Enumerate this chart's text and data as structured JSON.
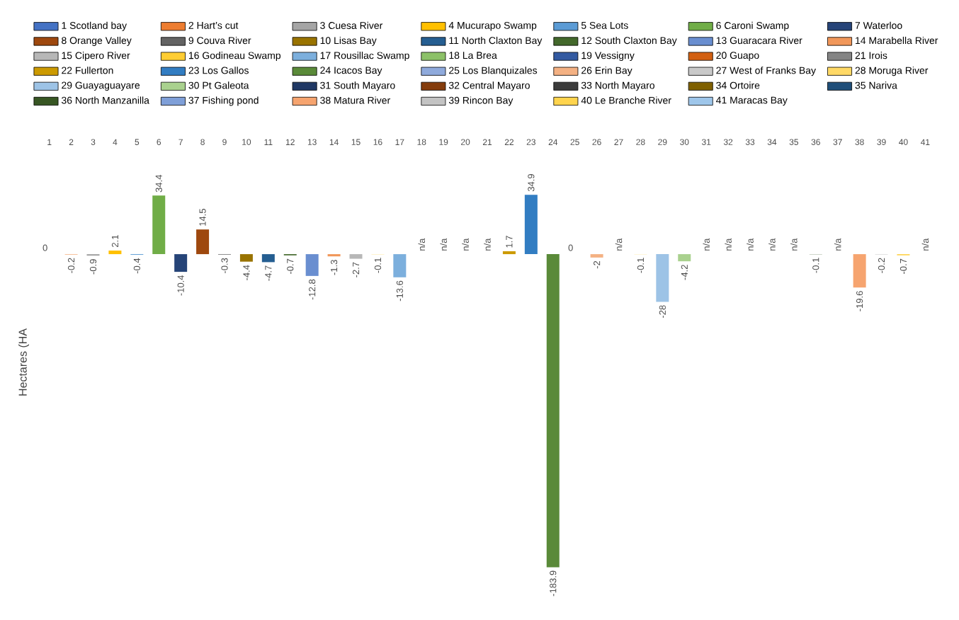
{
  "chart_data": {
    "type": "bar",
    "ylabel": "Hectares (HA",
    "categories": [
      "1",
      "2",
      "3",
      "4",
      "5",
      "6",
      "7",
      "8",
      "9",
      "10",
      "11",
      "12",
      "13",
      "14",
      "15",
      "16",
      "17",
      "18",
      "19",
      "20",
      "21",
      "22",
      "23",
      "24",
      "25",
      "26",
      "27",
      "28",
      "29",
      "30",
      "31",
      "32",
      "33",
      "34",
      "35",
      "36",
      "37",
      "38",
      "39",
      "40",
      "41"
    ],
    "series": [
      {
        "name": "1 Scotland bay",
        "color": "#4472c4",
        "x": [
          "1"
        ],
        "values": [
          0
        ],
        "value_labels": [
          "0"
        ]
      },
      {
        "name": "2 Hart’s cut",
        "color": "#ed7d31",
        "x": [
          "2"
        ],
        "values": [
          -0.2
        ],
        "value_labels": [
          "-0.2"
        ]
      },
      {
        "name": "3 Cuesa River",
        "color": "#a5a5a5",
        "x": [
          "3"
        ],
        "values": [
          -0.9
        ],
        "value_labels": [
          "-0.9"
        ]
      },
      {
        "name": "4 Mucurapo Swamp",
        "color": "#ffc000",
        "x": [
          "4"
        ],
        "values": [
          2.1
        ],
        "value_labels": [
          "2.1"
        ]
      },
      {
        "name": "5 Sea Lots",
        "color": "#5b9bd5",
        "x": [
          "5"
        ],
        "values": [
          -0.4
        ],
        "value_labels": [
          "-0.4"
        ]
      },
      {
        "name": "6 Caroni Swamp",
        "color": "#70ad47",
        "x": [
          "6"
        ],
        "values": [
          34.4
        ],
        "value_labels": [
          "34.4"
        ]
      },
      {
        "name": "7 Waterloo",
        "color": "#264478",
        "x": [
          "7"
        ],
        "values": [
          -10.4
        ],
        "value_labels": [
          "-10.4"
        ]
      },
      {
        "name": "8 Orange Valley",
        "color": "#9e480e",
        "x": [
          "8"
        ],
        "values": [
          14.5
        ],
        "value_labels": [
          "14.5"
        ]
      },
      {
        "name": "9 Couva River",
        "color": "#636363",
        "x": [
          "9"
        ],
        "values": [
          -0.3
        ],
        "value_labels": [
          "-0.3"
        ]
      },
      {
        "name": "10 Lisas Bay",
        "color": "#997300",
        "x": [
          "10"
        ],
        "values": [
          -4.4
        ],
        "value_labels": [
          "-4.4"
        ]
      },
      {
        "name": "11 North Claxton Bay",
        "color": "#255e91",
        "x": [
          "11"
        ],
        "values": [
          -4.7
        ],
        "value_labels": [
          "-4.7"
        ]
      },
      {
        "name": "12 South Claxton Bay",
        "color": "#43682b",
        "x": [
          "12"
        ],
        "values": [
          -0.7
        ],
        "value_labels": [
          "-0.7"
        ]
      },
      {
        "name": "13 Guaracara River",
        "color": "#698ed0",
        "x": [
          "13"
        ],
        "values": [
          -12.8
        ],
        "value_labels": [
          "-12.8"
        ]
      },
      {
        "name": "14 Marabella River",
        "color": "#f1975a",
        "x": [
          "14"
        ],
        "values": [
          -1.3
        ],
        "value_labels": [
          "-1.3"
        ]
      },
      {
        "name": "15 Cipero River",
        "color": "#b7b7b7",
        "x": [
          "15"
        ],
        "values": [
          -2.7
        ],
        "value_labels": [
          "-2.7"
        ]
      },
      {
        "name": "16 Godineau Swamp",
        "color": "#ffcd33",
        "x": [
          "16"
        ],
        "values": [
          -0.1
        ],
        "value_labels": [
          "-0.1"
        ]
      },
      {
        "name": "17 Rousillac Swamp",
        "color": "#7cafdd",
        "x": [
          "17"
        ],
        "values": [
          -13.6
        ],
        "value_labels": [
          "-13.6"
        ]
      },
      {
        "name": "18 La Brea",
        "color": "#8cc168",
        "x": [
          "18"
        ],
        "values": [
          null
        ],
        "value_labels": [
          "n/a"
        ]
      },
      {
        "name": "19 Vessigny",
        "color": "#335aa1",
        "x": [
          "19"
        ],
        "values": [
          null
        ],
        "value_labels": [
          "n/a"
        ]
      },
      {
        "name": "20 Guapo",
        "color": "#d26012",
        "x": [
          "20"
        ],
        "values": [
          null
        ],
        "value_labels": [
          "n/a"
        ]
      },
      {
        "name": "21 Irois",
        "color": "#848484",
        "x": [
          "21"
        ],
        "values": [
          null
        ],
        "value_labels": [
          "n/a"
        ]
      },
      {
        "name": "22 Fullerton",
        "color": "#cc9a00",
        "x": [
          "22"
        ],
        "values": [
          1.7
        ],
        "value_labels": [
          "1.7"
        ]
      },
      {
        "name": "23 Los Gallos",
        "color": "#327dc2",
        "x": [
          "23"
        ],
        "values": [
          34.9
        ],
        "value_labels": [
          "34.9"
        ]
      },
      {
        "name": "24 Icacos Bay",
        "color": "#5a8a39",
        "x": [
          "24"
        ],
        "values": [
          -183.9
        ],
        "value_labels": [
          "-183.9"
        ]
      },
      {
        "name": "25 Los Blanquizales",
        "color": "#8faadc",
        "x": [
          "25"
        ],
        "values": [
          0
        ],
        "value_labels": [
          "0"
        ]
      },
      {
        "name": "26 Erin Bay",
        "color": "#f4b183",
        "x": [
          "26"
        ],
        "values": [
          -2
        ],
        "value_labels": [
          "-2"
        ]
      },
      {
        "name": "27 West of Franks Bay",
        "color": "#c9c9c9",
        "x": [
          "27"
        ],
        "values": [
          null
        ],
        "value_labels": [
          "n/a"
        ]
      },
      {
        "name": "28 Moruga River",
        "color": "#ffd966",
        "x": [
          "28"
        ],
        "values": [
          -0.1
        ],
        "value_labels": [
          "-0.1"
        ]
      },
      {
        "name": "29 Guayaguayare",
        "color": "#9dc3e6",
        "x": [
          "29"
        ],
        "values": [
          -28
        ],
        "value_labels": [
          "-28"
        ]
      },
      {
        "name": "30 Pt Galeota",
        "color": "#a9d18e",
        "x": [
          "30"
        ],
        "values": [
          -4.2
        ],
        "value_labels": [
          "-4.2"
        ]
      },
      {
        "name": "31 South Mayaro",
        "color": "#203864",
        "x": [
          "31"
        ],
        "values": [
          null
        ],
        "value_labels": [
          "n/a"
        ]
      },
      {
        "name": "32 Central Mayaro",
        "color": "#843c0c",
        "x": [
          "32"
        ],
        "values": [
          null
        ],
        "value_labels": [
          "n/a"
        ]
      },
      {
        "name": "33 North Mayaro",
        "color": "#3b3b3b",
        "x": [
          "33"
        ],
        "values": [
          null
        ],
        "value_labels": [
          "n/a"
        ]
      },
      {
        "name": "34 Ortoire",
        "color": "#7f6000",
        "x": [
          "34"
        ],
        "values": [
          null
        ],
        "value_labels": [
          "n/a"
        ]
      },
      {
        "name": "35 Nariva",
        "color": "#1f4e79",
        "x": [
          "35"
        ],
        "values": [
          null
        ],
        "value_labels": [
          "n/a"
        ]
      },
      {
        "name": "36 North Manzanilla",
        "color": "#375623",
        "x": [
          "36"
        ],
        "values": [
          -0.1
        ],
        "value_labels": [
          "-0.1"
        ]
      },
      {
        "name": "37 Fishing pond",
        "color": "#7f9fd8",
        "x": [
          "37"
        ],
        "values": [
          null
        ],
        "value_labels": [
          "n/a"
        ]
      },
      {
        "name": "38 Matura River",
        "color": "#f6a46f",
        "x": [
          "38"
        ],
        "values": [
          -19.6
        ],
        "value_labels": [
          "-19.6"
        ]
      },
      {
        "name": "39 Rincon Bay",
        "color": "#c3c3c3",
        "x": [
          "39"
        ],
        "values": [
          -0.2
        ],
        "value_labels": [
          "-0.2"
        ]
      },
      {
        "name": "40 Le Branche River",
        "color": "#ffd44d",
        "x": [
          "40"
        ],
        "values": [
          -0.7
        ],
        "value_labels": [
          "-0.7"
        ]
      },
      {
        "name": "41 Maracas Bay",
        "color": "#9ec6ea",
        "x": [
          "41"
        ],
        "values": [
          null
        ],
        "value_labels": [
          "n/a"
        ]
      }
    ],
    "legend": "top"
  }
}
